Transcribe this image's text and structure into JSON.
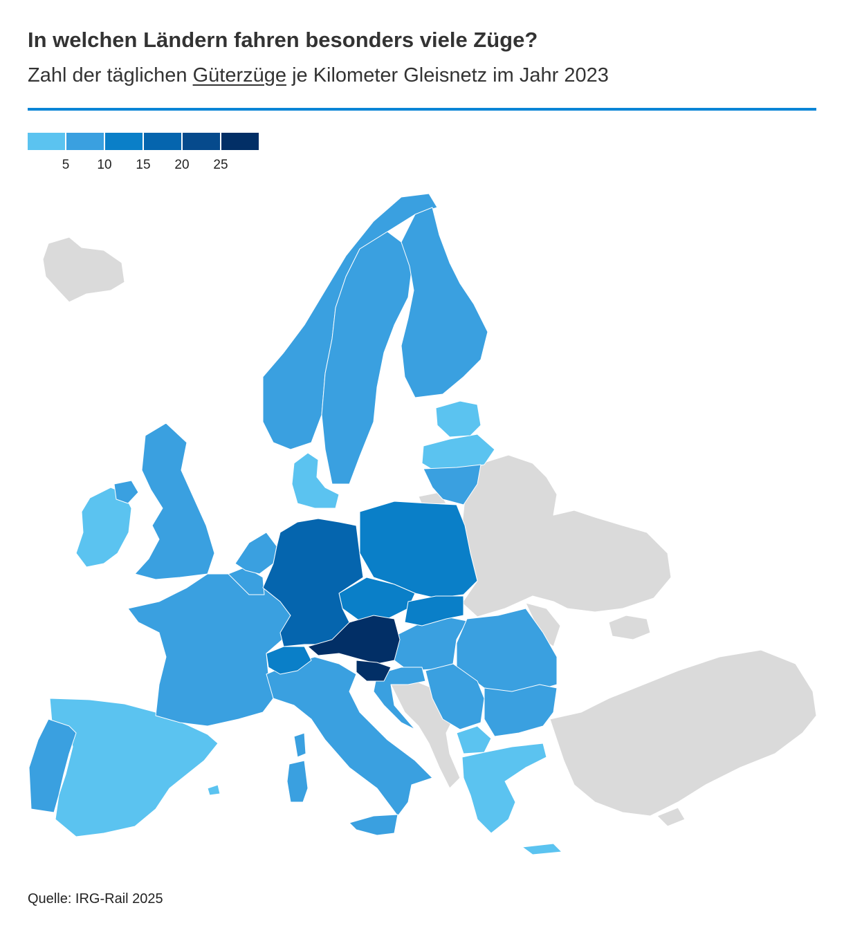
{
  "header": {
    "title": "In welchen Ländern fahren besonders viele Züge?",
    "subtitle_before": "Zahl der täglichen ",
    "subtitle_highlight": "Güterzüge",
    "subtitle_after": " je Kilometer Gleisnetz im Jahr 2023"
  },
  "legend": {
    "colors": [
      "#5bc3f0",
      "#3aa0e0",
      "#0a7fc8",
      "#0565ae",
      "#064a8c",
      "#022f66"
    ],
    "ticks": [
      "5",
      "10",
      "15",
      "20",
      "25"
    ]
  },
  "map": {
    "nodata_color": "#dadada",
    "classes": {
      "c1": "#5bc3f0",
      "c2": "#3aa0e0",
      "c3": "#0a7fc8",
      "c4": "#0565ae",
      "c6": "#022f66"
    }
  },
  "footer": {
    "source": "Quelle: IRG-Rail 2025"
  }
}
